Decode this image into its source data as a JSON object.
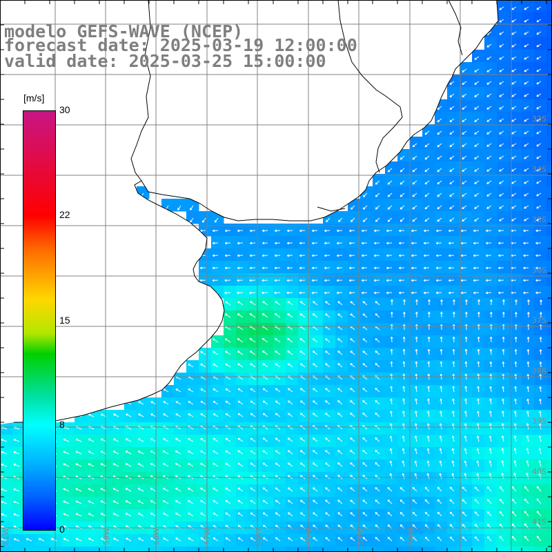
{
  "title": {
    "line1": "modelo GEFS-WAVE (NCEP)",
    "line2": "forecast date: 2025-03-19 12:00:00",
    "line3": "valid date: 2025-03-25 15:00:00"
  },
  "colorbar": {
    "unit": "[m/s]",
    "ticks": [
      "30",
      "22",
      "15",
      "8",
      "0"
    ],
    "tick_values": [
      30,
      22,
      15,
      8,
      0
    ],
    "colors": [
      "#0000ff",
      "#0064ff",
      "#00b4ff",
      "#00ffff",
      "#00e0a0",
      "#00d000",
      "#b4e600",
      "#ffd700",
      "#ff6a00",
      "#ff0000",
      "#c71585"
    ]
  },
  "map": {
    "lat_labels": [
      "33S",
      "34S",
      "35S",
      "36S",
      "37S",
      "38S",
      "39S",
      "40S",
      "41S"
    ],
    "lon_labels": [
      "61W",
      "59W",
      "58W",
      "57W",
      "56W",
      "55W",
      "54W",
      "53W"
    ],
    "land_color": "#ffffff",
    "coast_color": "#000000",
    "grid_color": "#808080",
    "vector_color": "#ffffff"
  }
}
